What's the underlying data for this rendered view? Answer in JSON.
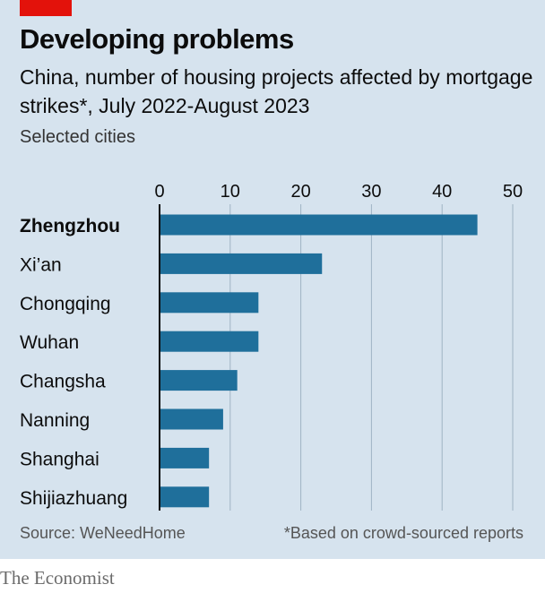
{
  "header": {
    "title": "Developing problems",
    "subtitle": "China, number of housing projects affected by mortgage strikes*, July 2022-August 2023",
    "note": "Selected cities"
  },
  "footer": {
    "source": "Source: WeNeedHome",
    "footnote": "*Based on crowd-sourced reports",
    "brand": "The Economist"
  },
  "colors": {
    "bar": "#1f6f9b",
    "background": "#d6e3ee",
    "accent": "#e3120b"
  },
  "chart_data": {
    "type": "bar",
    "orientation": "horizontal",
    "categories": [
      "Zhengzhou",
      "Xi’an",
      "Chongqing",
      "Wuhan",
      "Changsha",
      "Nanning",
      "Shanghai",
      "Shijiazhuang"
    ],
    "highlight": "Zhengzhou",
    "values": [
      45,
      23,
      14,
      14,
      11,
      9,
      7,
      7
    ],
    "xlim": [
      0,
      50
    ],
    "xticks": [
      0,
      10,
      20,
      30,
      40,
      50
    ],
    "grid": true,
    "title": "Developing problems",
    "subtitle": "China, number of housing projects affected by mortgage strikes*, July 2022-August 2023",
    "xlabel": "",
    "ylabel": ""
  }
}
